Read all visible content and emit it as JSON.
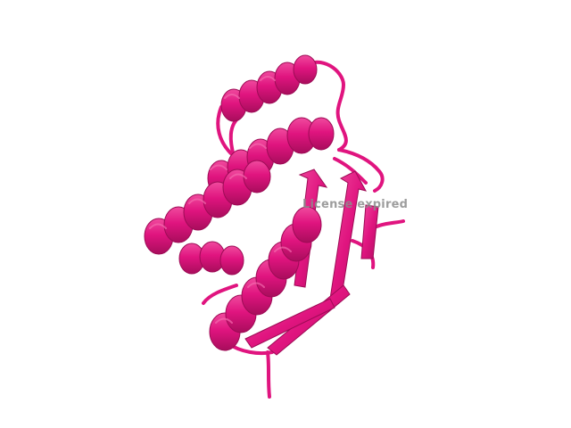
{
  "viewer": {
    "watermark_text": "License expired",
    "background_color": "#ffffff",
    "ribbon_color": "#e0147f",
    "ribbon_shade_color": "#a80d5c",
    "ribbon_highlight_color": "#f04a9e",
    "watermark_color": "#8c8c8c"
  }
}
